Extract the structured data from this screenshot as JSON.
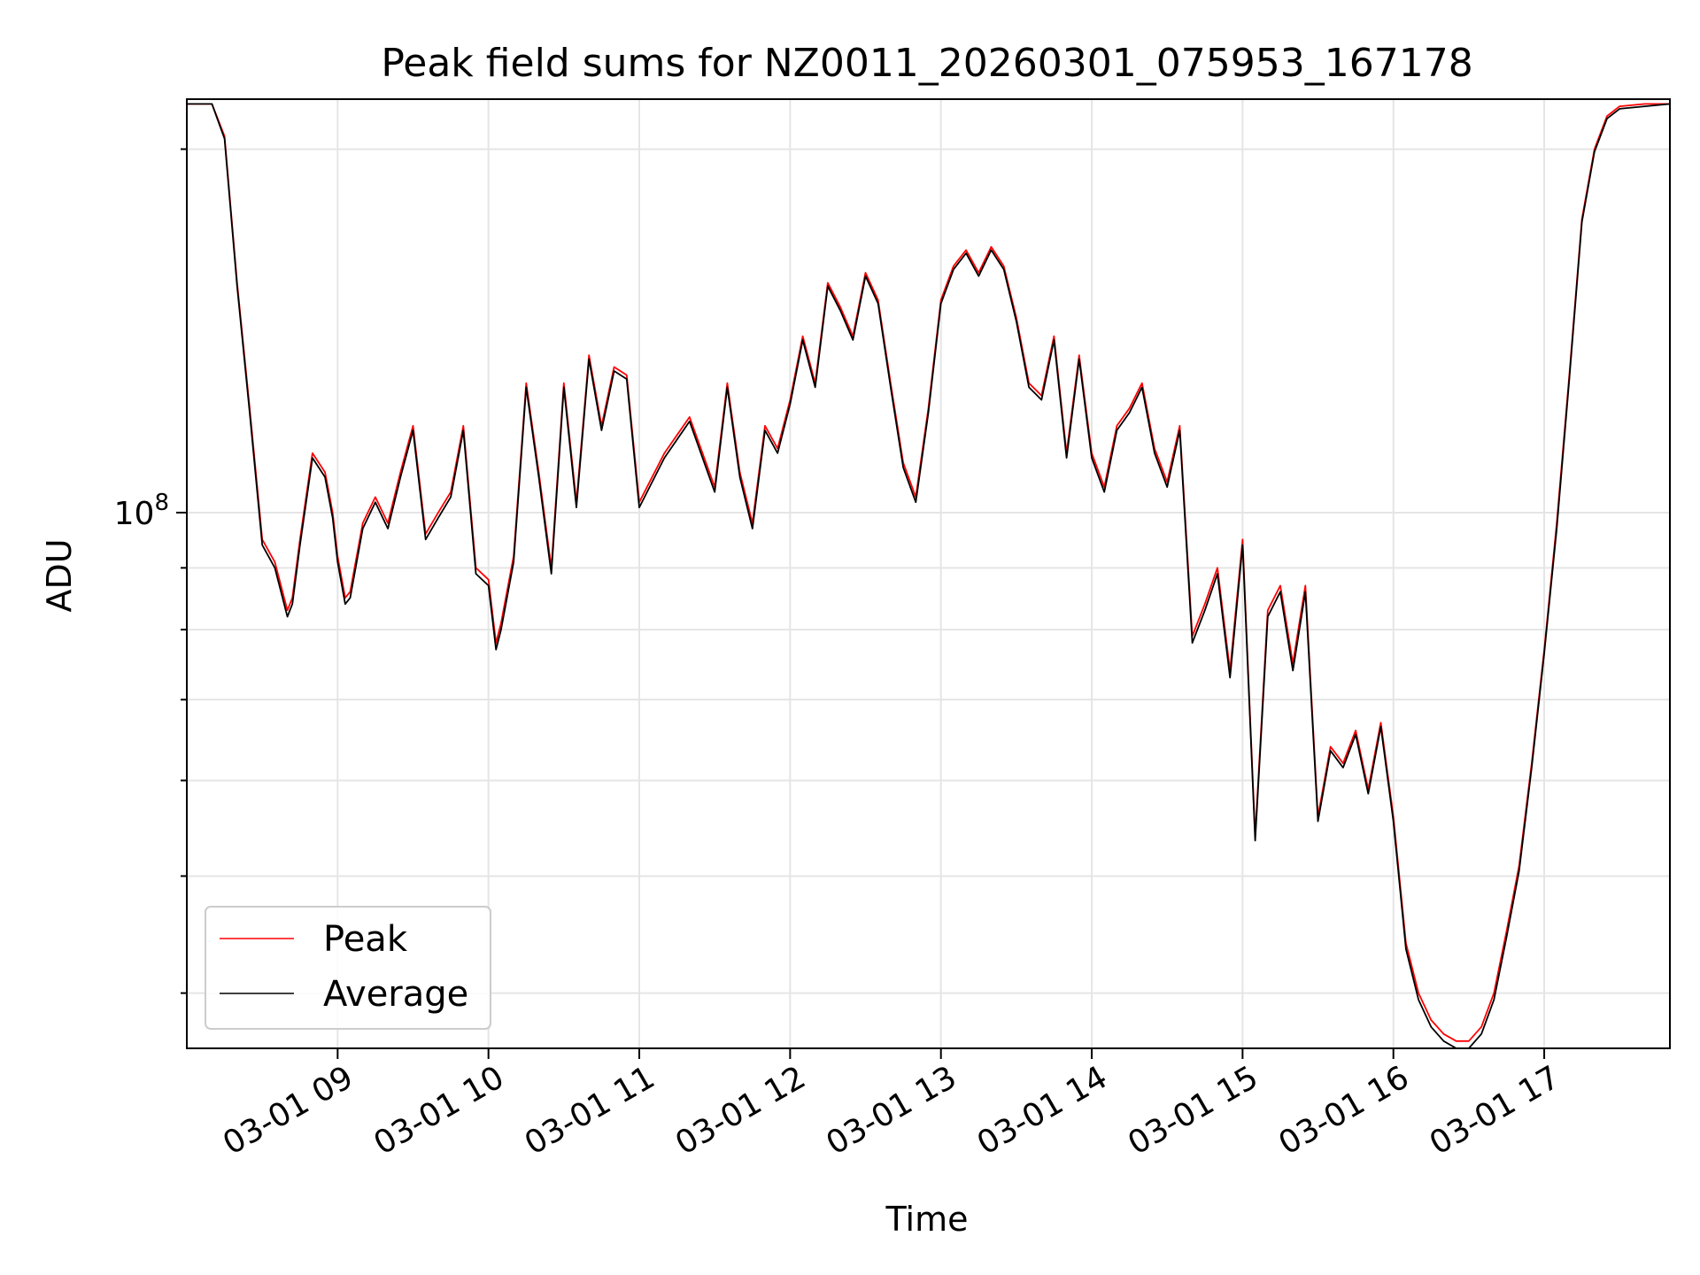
{
  "chart_data": {
    "type": "line",
    "title": "Peak field sums for NZ0011_20260301_075953_167178",
    "xlabel": "Time",
    "ylabel": "ADU",
    "x_ticks": [
      "03-01 09",
      "03-01 10",
      "03-01 11",
      "03-01 12",
      "03-01 13",
      "03-01 14",
      "03-01 15",
      "03-01 16",
      "03-01 17"
    ],
    "x_tick_hours": [
      9,
      10,
      11,
      12,
      13,
      14,
      15,
      16,
      17
    ],
    "y_tick_label": "10^8",
    "y_scale": "log",
    "xlim": [
      "03-01 08:00",
      "03-01 17:50"
    ],
    "ylim": [
      36000000,
      220000000
    ],
    "grid": true,
    "legend_position": "lower-left",
    "series": [
      {
        "name": "Peak",
        "color": "#ff0000",
        "x": [
          "08:00",
          "08:10",
          "08:15",
          "08:20",
          "08:25",
          "08:30",
          "08:35",
          "08:40",
          "08:42",
          "08:45",
          "08:50",
          "08:55",
          "08:58",
          "09:00",
          "09:03",
          "09:05",
          "09:10",
          "09:15",
          "09:20",
          "09:25",
          "09:30",
          "09:35",
          "09:40",
          "09:45",
          "09:50",
          "09:55",
          "10:00",
          "10:03",
          "10:05",
          "10:10",
          "10:15",
          "10:20",
          "10:25",
          "10:30",
          "10:35",
          "10:40",
          "10:45",
          "10:50",
          "10:55",
          "11:00",
          "11:10",
          "11:20",
          "11:30",
          "11:35",
          "11:40",
          "11:45",
          "11:50",
          "11:55",
          "12:00",
          "12:05",
          "12:10",
          "12:15",
          "12:20",
          "12:25",
          "12:30",
          "12:35",
          "12:40",
          "12:45",
          "12:50",
          "12:55",
          "13:00",
          "13:05",
          "13:10",
          "13:15",
          "13:20",
          "13:25",
          "13:30",
          "13:35",
          "13:40",
          "13:45",
          "13:50",
          "13:55",
          "14:00",
          "14:05",
          "14:10",
          "14:15",
          "14:20",
          "14:25",
          "14:30",
          "14:35",
          "14:40",
          "14:45",
          "14:50",
          "14:55",
          "15:00",
          "15:05",
          "15:10",
          "15:15",
          "15:20",
          "15:25",
          "15:30",
          "15:35",
          "15:40",
          "15:45",
          "15:50",
          "15:55",
          "16:00",
          "16:05",
          "16:10",
          "16:15",
          "16:20",
          "16:25",
          "16:30",
          "16:35",
          "16:40",
          "16:45",
          "16:50",
          "16:55",
          "17:00",
          "17:05",
          "17:10",
          "17:15",
          "17:20",
          "17:25",
          "17:30",
          "17:40",
          "17:50"
        ],
        "y": [
          218000000,
          218000000,
          205000000,
          155000000,
          122000000,
          95000000,
          91000000,
          83000000,
          85000000,
          95000000,
          112000000,
          108000000,
          100000000,
          92000000,
          85000000,
          86000000,
          98000000,
          103000000,
          98000000,
          108000000,
          118000000,
          96000000,
          100000000,
          104000000,
          118000000,
          90000000,
          88000000,
          78000000,
          81000000,
          92000000,
          128000000,
          108000000,
          90000000,
          128000000,
          102000000,
          135000000,
          118000000,
          132000000,
          130000000,
          102000000,
          112000000,
          120000000,
          105000000,
          128000000,
          108000000,
          98000000,
          118000000,
          113000000,
          124000000,
          140000000,
          128000000,
          155000000,
          148000000,
          140000000,
          158000000,
          150000000,
          128000000,
          110000000,
          103000000,
          122000000,
          150000000,
          160000000,
          165000000,
          158000000,
          166000000,
          160000000,
          145000000,
          128000000,
          125000000,
          140000000,
          112000000,
          135000000,
          112000000,
          105000000,
          118000000,
          122000000,
          128000000,
          113000000,
          106000000,
          118000000,
          79000000,
          84000000,
          90000000,
          74000000,
          95000000,
          54000000,
          83000000,
          87000000,
          75000000,
          87000000,
          56000000,
          64000000,
          62000000,
          66000000,
          59000000,
          67000000,
          56000000,
          44000000,
          40000000,
          38000000,
          37000000,
          36500000,
          36500000,
          37500000,
          40000000,
          45000000,
          51000000,
          62000000,
          77000000,
          98000000,
          130000000,
          175000000,
          200000000,
          213000000,
          217000000,
          218000000,
          218000000
        ]
      },
      {
        "name": "Average",
        "color": "#000000",
        "x": [
          "08:00",
          "08:10",
          "08:15",
          "08:20",
          "08:25",
          "08:30",
          "08:35",
          "08:40",
          "08:42",
          "08:45",
          "08:50",
          "08:55",
          "08:58",
          "09:00",
          "09:03",
          "09:05",
          "09:10",
          "09:15",
          "09:20",
          "09:25",
          "09:30",
          "09:35",
          "09:40",
          "09:45",
          "09:50",
          "09:55",
          "10:00",
          "10:03",
          "10:05",
          "10:10",
          "10:15",
          "10:20",
          "10:25",
          "10:30",
          "10:35",
          "10:40",
          "10:45",
          "10:50",
          "10:55",
          "11:00",
          "11:10",
          "11:20",
          "11:30",
          "11:35",
          "11:40",
          "11:45",
          "11:50",
          "11:55",
          "12:00",
          "12:05",
          "12:10",
          "12:15",
          "12:20",
          "12:25",
          "12:30",
          "12:35",
          "12:40",
          "12:45",
          "12:50",
          "12:55",
          "13:00",
          "13:05",
          "13:10",
          "13:15",
          "13:20",
          "13:25",
          "13:30",
          "13:35",
          "13:40",
          "13:45",
          "13:50",
          "13:55",
          "14:00",
          "14:05",
          "14:10",
          "14:15",
          "14:20",
          "14:25",
          "14:30",
          "14:35",
          "14:40",
          "14:45",
          "14:50",
          "14:55",
          "15:00",
          "15:05",
          "15:10",
          "15:15",
          "15:20",
          "15:25",
          "15:30",
          "15:35",
          "15:40",
          "15:45",
          "15:50",
          "15:55",
          "16:00",
          "16:05",
          "16:10",
          "16:15",
          "16:20",
          "16:25",
          "16:30",
          "16:35",
          "16:40",
          "16:45",
          "16:50",
          "16:55",
          "17:00",
          "17:05",
          "17:10",
          "17:15",
          "17:20",
          "17:25",
          "17:30",
          "17:40",
          "17:50"
        ],
        "y": [
          218000000,
          218000000,
          204000000,
          154000000,
          121000000,
          94000000,
          90000000,
          82000000,
          84000000,
          94000000,
          111000000,
          107000000,
          99000000,
          91000000,
          84000000,
          85000000,
          97000000,
          102000000,
          97000000,
          107000000,
          117000000,
          95000000,
          99000000,
          103000000,
          117000000,
          89000000,
          87000000,
          77000000,
          80000000,
          91000000,
          127000000,
          107000000,
          89000000,
          127000000,
          101000000,
          134000000,
          117000000,
          131000000,
          129000000,
          101000000,
          111000000,
          119000000,
          104000000,
          127000000,
          107000000,
          97000000,
          117000000,
          112000000,
          123000000,
          139000000,
          127000000,
          154000000,
          147000000,
          139000000,
          157000000,
          149000000,
          127000000,
          109000000,
          102000000,
          121000000,
          149000000,
          159000000,
          164000000,
          157000000,
          165000000,
          159000000,
          144000000,
          127000000,
          124000000,
          139000000,
          111000000,
          134000000,
          111000000,
          104000000,
          117000000,
          121000000,
          127000000,
          112000000,
          105000000,
          117000000,
          78000000,
          83000000,
          89000000,
          73000000,
          94000000,
          53500000,
          82000000,
          86000000,
          74000000,
          86000000,
          55500000,
          63500000,
          61500000,
          65500000,
          58500000,
          66500000,
          55500000,
          43500000,
          39500000,
          37500000,
          36500000,
          36000000,
          36000000,
          37000000,
          39500000,
          44500000,
          50500000,
          61500000,
          76500000,
          97000000,
          129000000,
          174000000,
          199000000,
          212000000,
          216000000,
          217000000,
          218000000
        ]
      }
    ]
  }
}
